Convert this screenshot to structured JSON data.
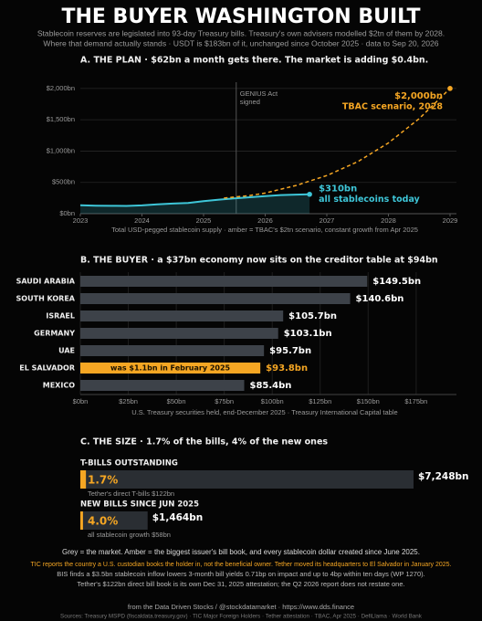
{
  "header": {
    "title": "THE BUYER WASHINGTON BUILT",
    "subtitle": [
      "Stablecoin reserves are legislated into 93-day Treasury bills. Treasury's own advisers modelled $2tn of them by 2028.",
      "Where that demand actually stands  ·  USDT is $183bn of it, unchanged since October 2025  ·  data to Sep 20, 2026"
    ]
  },
  "chart_data": [
    {
      "type": "line",
      "title": "A. THE PLAN   ·   $62bn a month gets there. The market is adding $0.4bn.",
      "caption": "Total USD-pegged stablecoin supply  ·  amber = TBAC's $2tn scenario, constant growth from Apr 2025",
      "xlim": [
        2023,
        2029
      ],
      "xticks": [
        2023,
        2024,
        2025,
        2026,
        2027,
        2028,
        2029
      ],
      "ylim": [
        0,
        2100
      ],
      "yticks": [
        {
          "value": 0,
          "label": "$0bn"
        },
        {
          "value": 500,
          "label": "$500bn"
        },
        {
          "value": 1000,
          "label": "$1,000bn"
        },
        {
          "value": 1500,
          "label": "$1,500bn"
        },
        {
          "value": 2000,
          "label": "$2,000bn"
        }
      ],
      "grid": true,
      "events": [
        {
          "x": 2025.53,
          "label": [
            "GENIUS Act",
            "signed"
          ]
        }
      ],
      "series": [
        {
          "color": "#3ec6d8",
          "area": true,
          "x": [
            2023.0,
            2023.25,
            2023.5,
            2023.75,
            2024.0,
            2024.25,
            2024.5,
            2024.75,
            2025.0,
            2025.25,
            2025.5,
            2025.75,
            2026.0,
            2026.25,
            2026.5,
            2026.72
          ],
          "values": [
            135,
            128,
            125,
            124,
            132,
            150,
            162,
            170,
            200,
            225,
            245,
            262,
            280,
            298,
            305,
            310
          ],
          "end_label": "$310bn",
          "end_note": "all stablecoins today"
        },
        {
          "color": "#f5a623",
          "dashed": true,
          "x": [
            2025.33,
            2025.75,
            2026.0,
            2026.5,
            2027.0,
            2027.5,
            2028.0,
            2028.5,
            2029.0
          ],
          "values": [
            250,
            290,
            330,
            450,
            610,
            830,
            1130,
            1520,
            2000
          ],
          "end_label": "$2,000bn",
          "end_note": "TBAC scenario, 2028"
        }
      ]
    },
    {
      "type": "hbar",
      "title": "B. THE BUYER   ·   a $37bn economy now sits on the creditor table at $94bn",
      "caption": "U.S. Treasury securities held, end-December 2025  ·  Treasury International Capital table",
      "categories": [
        "SAUDI ARABIA",
        "SOUTH KOREA",
        "ISRAEL",
        "GERMANY",
        "UAE",
        "EL SALVADOR",
        "MEXICO"
      ],
      "values": [
        149.5,
        140.6,
        105.7,
        103.1,
        95.7,
        93.8,
        85.4
      ],
      "value_labels": [
        "$149.5bn",
        "$140.6bn",
        "$105.7bn",
        "$103.1bn",
        "$95.7bn",
        "$93.8bn",
        "$85.4bn"
      ],
      "colors": [
        "#3d4249",
        "#3d4249",
        "#3d4249",
        "#3d4249",
        "#3d4249",
        "#f5a623",
        "#3d4249"
      ],
      "bar_notes": [
        null,
        null,
        null,
        null,
        null,
        "was $1.1bn in February 2025",
        null
      ],
      "xlim": [
        0,
        196
      ],
      "xticks": [
        {
          "value": 0,
          "label": "$0bn"
        },
        {
          "value": 25,
          "label": "$25bn"
        },
        {
          "value": 50,
          "label": "$50bn"
        },
        {
          "value": 75,
          "label": "$75bn"
        },
        {
          "value": 100,
          "label": "$100bn"
        },
        {
          "value": 125,
          "label": "$125bn"
        },
        {
          "value": 150,
          "label": "$150bn"
        },
        {
          "value": 175,
          "label": "$175bn"
        }
      ],
      "grid": true
    },
    {
      "type": "progress",
      "title": "C. THE SIZE   ·   1.7% of the bills, 4% of the new ones",
      "items": [
        {
          "name": "T-BILLS OUTSTANDING",
          "total": 7248,
          "total_label": "$7,248bn",
          "part": 122,
          "part_name": "Tether's direct T-bills",
          "part_label": "$122bn",
          "share": 1.7,
          "share_label": "1.7%"
        },
        {
          "name": "NEW BILLS SINCE JUN 2025",
          "total": 1464,
          "total_label": "$1,464bn",
          "part": 58,
          "part_name": "all stablecoin growth",
          "part_label": "$58bn",
          "share": 4.0,
          "share_label": "4.0%"
        }
      ]
    }
  ],
  "notes": [
    "Grey = the market.  Amber = the biggest issuer's bill book, and every stablecoin dollar created since June 2025.",
    "TIC reports the country a U.S. custodian books the holder in, not the beneficial owner.  Tether moved its headquarters to El Salvador in January 2025.",
    "BIS finds a $3.5bn stablecoin inflow lowers 3-month bill yields 0.71bp on impact and up to 4bp within ten days (WP 1270).",
    "Tether's $122bn direct bill book is its own Dec 31, 2025 attestation; the Q2 2026 report does not restate one."
  ],
  "footer": [
    "from the Data Driven Stocks / @stockdatamarket     ·     https://www.dds.finance",
    "Sources: Treasury MSPD (fiscaldata.treasury.gov)  ·  TIC Major Foreign Holders  ·  Tether attestation  ·  TBAC, Apr 2025  ·  DefiLlama  ·  World Bank"
  ]
}
